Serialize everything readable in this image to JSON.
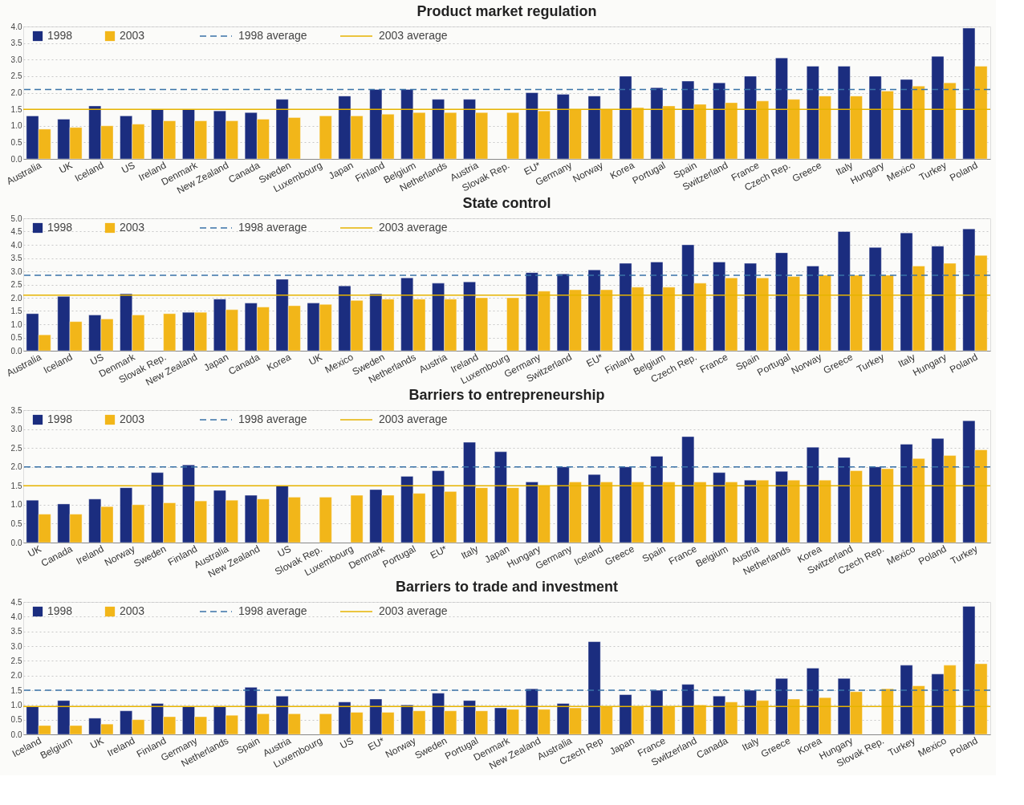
{
  "chart_data": [
    {
      "type": "bar",
      "title": "Product market regulation",
      "categories": [
        "Australia",
        "UK",
        "Iceland",
        "US",
        "Ireland",
        "Denmark",
        "New Zealand",
        "Canada",
        "Sweden",
        "Luxembourg",
        "Japan",
        "Finland",
        "Belgium",
        "Netherlands",
        "Austria",
        "Slovak Rep.",
        "EU*",
        "Germany",
        "Norway",
        "Korea",
        "Portugal",
        "Spain",
        "Switzerland",
        "France",
        "Czech Rep.",
        "Greece",
        "Italy",
        "Hungary",
        "Mexico",
        "Turkey",
        "Poland"
      ],
      "series": [
        {
          "name": "1998",
          "color": "#1b2d7f",
          "values": [
            1.3,
            1.2,
            1.6,
            1.3,
            1.5,
            1.5,
            1.45,
            1.4,
            1.8,
            null,
            1.9,
            2.1,
            2.1,
            1.8,
            1.8,
            null,
            2.0,
            1.95,
            1.9,
            2.5,
            2.15,
            2.35,
            2.3,
            2.5,
            3.05,
            2.8,
            2.8,
            2.5,
            2.4,
            3.1,
            3.95
          ]
        },
        {
          "name": "2003",
          "color": "#f2b619",
          "values": [
            0.9,
            0.95,
            1.0,
            1.05,
            1.15,
            1.15,
            1.15,
            1.2,
            1.25,
            1.3,
            1.3,
            1.35,
            1.4,
            1.4,
            1.4,
            1.4,
            1.45,
            1.5,
            1.5,
            1.55,
            1.6,
            1.65,
            1.7,
            1.75,
            1.8,
            1.9,
            1.9,
            2.05,
            2.2,
            2.3,
            2.8
          ]
        }
      ],
      "ref_lines": [
        {
          "axis": "y",
          "value": 2.1,
          "label": "1998 average",
          "color": "#3a73a8",
          "line_style": "dashed"
        },
        {
          "axis": "y",
          "value": 1.5,
          "label": "2003 average",
          "color": "#e6b300",
          "line_style": "solid"
        }
      ],
      "ylim": [
        0,
        4
      ],
      "yticks": [
        {
          "value": 0,
          "label": "0.0"
        },
        {
          "value": 0.5,
          "label": "0.5"
        },
        {
          "value": 1,
          "label": "1.0"
        },
        {
          "value": 1.5,
          "label": "1.5"
        },
        {
          "value": 2,
          "label": "2.0"
        },
        {
          "value": 2.5,
          "label": "2.5"
        },
        {
          "value": 3,
          "label": "3.0"
        },
        {
          "value": 3.5,
          "label": "3.5"
        },
        {
          "value": 4,
          "label": "4.0"
        }
      ],
      "grid": "y",
      "legend": "top left"
    },
    {
      "type": "bar",
      "title": "State control",
      "categories": [
        "Australia",
        "Iceland",
        "US",
        "Denmark",
        "Slovak Rep.",
        "New Zealand",
        "Japan",
        "Canada",
        "Korea",
        "UK",
        "Mexico",
        "Sweden",
        "Netherlands",
        "Austria",
        "Ireland",
        "Luxembourg",
        "Germany",
        "Switzerland",
        "EU*",
        "Finland",
        "Belgium",
        "Czech Rep.",
        "France",
        "Spain",
        "Portugal",
        "Norway",
        "Greece",
        "Turkey",
        "Italy",
        "Hungary",
        "Poland"
      ],
      "series": [
        {
          "name": "1998",
          "color": "#1b2d7f",
          "values": [
            1.4,
            2.05,
            1.35,
            2.15,
            null,
            1.45,
            1.95,
            1.8,
            2.7,
            1.8,
            2.45,
            2.15,
            2.75,
            2.55,
            2.6,
            null,
            2.95,
            2.9,
            3.05,
            3.3,
            3.35,
            4.0,
            3.35,
            3.3,
            3.7,
            3.2,
            4.5,
            3.9,
            4.45,
            3.95,
            4.6
          ]
        },
        {
          "name": "2003",
          "color": "#f2b619",
          "values": [
            0.6,
            1.1,
            1.2,
            1.35,
            1.4,
            1.45,
            1.55,
            1.65,
            1.7,
            1.75,
            1.9,
            1.95,
            1.95,
            1.95,
            2.0,
            2.0,
            2.25,
            2.3,
            2.3,
            2.4,
            2.4,
            2.55,
            2.75,
            2.75,
            2.8,
            2.85,
            2.85,
            2.85,
            3.2,
            3.3,
            3.6
          ]
        }
      ],
      "ref_lines": [
        {
          "axis": "y",
          "value": 2.85,
          "label": "1998 average",
          "color": "#3a73a8",
          "line_style": "dashed"
        },
        {
          "axis": "y",
          "value": 2.1,
          "label": "2003 average",
          "color": "#e6b300",
          "line_style": "solid"
        }
      ],
      "ylim": [
        0,
        5
      ],
      "yticks": [
        {
          "value": 0,
          "label": "0.0"
        },
        {
          "value": 0.5,
          "label": "0.5"
        },
        {
          "value": 1,
          "label": "1.0"
        },
        {
          "value": 1.5,
          "label": "1.5"
        },
        {
          "value": 2,
          "label": "2.0"
        },
        {
          "value": 2.5,
          "label": "2.5"
        },
        {
          "value": 3,
          "label": "3.0"
        },
        {
          "value": 3.5,
          "label": "3.5"
        },
        {
          "value": 4,
          "label": "4.0"
        },
        {
          "value": 4.5,
          "label": "4.5"
        },
        {
          "value": 5,
          "label": "5.0"
        }
      ],
      "grid": "y",
      "legend": "top left"
    },
    {
      "type": "bar",
      "title": "Barriers to entrepreneurship",
      "categories": [
        "UK",
        "Canada",
        "Ireland",
        "Norway",
        "Sweden",
        "Finland",
        "Australia",
        "New Zealand",
        "US",
        "Slovak Rep.",
        "Luxembourg",
        "Denmark",
        "Portugal",
        "EU*",
        "Italy",
        "Japan",
        "Hungary",
        "Germany",
        "Iceland",
        "Greece",
        "Spain",
        "France",
        "Belgium",
        "Austria",
        "Netherlands",
        "Korea",
        "Switzerland",
        "Czech Rep.",
        "Mexico",
        "Poland",
        "Turkey"
      ],
      "series": [
        {
          "name": "1998",
          "color": "#1b2d7f",
          "values": [
            1.12,
            1.02,
            1.15,
            1.45,
            1.85,
            2.05,
            1.38,
            1.25,
            1.5,
            null,
            null,
            1.4,
            1.75,
            1.9,
            2.65,
            2.4,
            1.6,
            2.0,
            1.8,
            2.0,
            2.28,
            2.8,
            1.85,
            1.65,
            1.88,
            2.52,
            2.25,
            2.0,
            2.6,
            2.75,
            3.22
          ]
        },
        {
          "name": "2003",
          "color": "#f2b619",
          "values": [
            0.75,
            0.75,
            0.95,
            1.0,
            1.05,
            1.1,
            1.12,
            1.15,
            1.2,
            1.2,
            1.25,
            1.25,
            1.3,
            1.35,
            1.45,
            1.45,
            1.5,
            1.6,
            1.6,
            1.6,
            1.6,
            1.6,
            1.6,
            1.65,
            1.65,
            1.65,
            1.9,
            1.95,
            2.22,
            2.3,
            2.45
          ]
        }
      ],
      "ref_lines": [
        {
          "axis": "y",
          "value": 2.0,
          "label": "1998 average",
          "color": "#3a73a8",
          "line_style": "dashed"
        },
        {
          "axis": "y",
          "value": 1.5,
          "label": "2003 average",
          "color": "#e6b300",
          "line_style": "solid"
        }
      ],
      "ylim": [
        0,
        3.5
      ],
      "yticks": [
        {
          "value": 0,
          "label": "0.0"
        },
        {
          "value": 0.5,
          "label": "0.5"
        },
        {
          "value": 1,
          "label": "1.0"
        },
        {
          "value": 1.5,
          "label": "1.5"
        },
        {
          "value": 2,
          "label": "2.0"
        },
        {
          "value": 2.5,
          "label": "2.5"
        },
        {
          "value": 3,
          "label": "3.0"
        },
        {
          "value": 3.5,
          "label": "3.5"
        }
      ],
      "grid": "y",
      "legend": "top left"
    },
    {
      "type": "bar",
      "title": "Barriers to trade and investment",
      "categories": [
        "Iceland",
        "Belgium",
        "UK",
        "Ireland",
        "Finland",
        "Germany",
        "Netherlands",
        "Spain",
        "Austria",
        "Luxembourg",
        "US",
        "EU*",
        "Norway",
        "Sweden",
        "Portugal",
        "Denmark",
        "New Zealand",
        "Australia",
        "Czech Rep",
        "Japan",
        "France",
        "Switzerland",
        "Canada",
        "Italy",
        "Greece",
        "Korea",
        "Hungary",
        "Slovak Rep.",
        "Turkey",
        "Mexico",
        "Poland"
      ],
      "series": [
        {
          "name": "1998",
          "color": "#1b2d7f",
          "values": [
            0.95,
            1.15,
            0.55,
            0.8,
            1.05,
            0.95,
            0.95,
            1.6,
            1.3,
            null,
            1.1,
            1.2,
            1.0,
            1.4,
            1.15,
            0.9,
            1.55,
            1.05,
            3.15,
            1.35,
            1.5,
            1.7,
            1.3,
            1.5,
            1.9,
            2.25,
            1.9,
            null,
            2.35,
            2.05,
            4.35
          ]
        },
        {
          "name": "2003",
          "color": "#f2b619",
          "values": [
            0.3,
            0.3,
            0.35,
            0.5,
            0.6,
            0.6,
            0.65,
            0.7,
            0.7,
            0.7,
            0.75,
            0.75,
            0.8,
            0.8,
            0.8,
            0.85,
            0.85,
            0.9,
            0.95,
            0.95,
            0.95,
            1.0,
            1.1,
            1.15,
            1.2,
            1.25,
            1.45,
            1.55,
            1.65,
            2.35,
            2.4
          ]
        }
      ],
      "ref_lines": [
        {
          "axis": "y",
          "value": 1.5,
          "label": "1998 average",
          "color": "#3a73a8",
          "line_style": "dashed"
        },
        {
          "axis": "y",
          "value": 0.95,
          "label": "2003 average",
          "color": "#e6b300",
          "line_style": "solid"
        }
      ],
      "ylim": [
        0,
        4.5
      ],
      "yticks": [
        {
          "value": 0,
          "label": "0.0"
        },
        {
          "value": 0.5,
          "label": "0.5"
        },
        {
          "value": 1,
          "label": "1.0"
        },
        {
          "value": 1.5,
          "label": "1.5"
        },
        {
          "value": 2,
          "label": "2.0"
        },
        {
          "value": 2.5,
          "label": "2.5"
        },
        {
          "value": 3,
          "label": "3.0"
        },
        {
          "value": 3.5,
          "label": "3.5"
        },
        {
          "value": 4,
          "label": "4.0"
        },
        {
          "value": 4.5,
          "label": "4.5"
        }
      ],
      "grid": "y",
      "legend": "top left"
    }
  ]
}
